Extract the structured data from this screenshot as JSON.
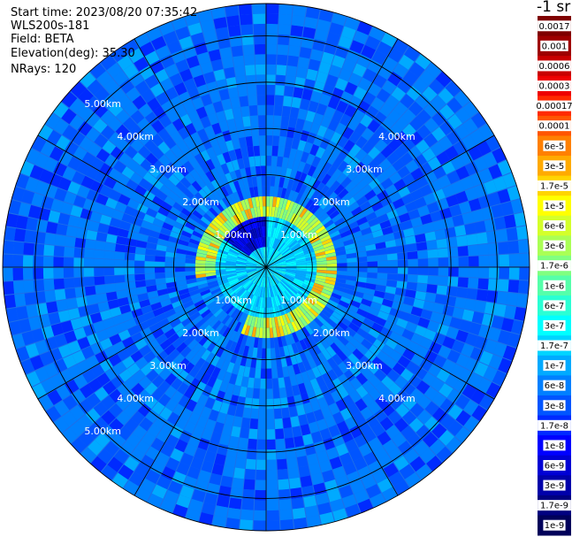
{
  "info": {
    "start_time": "Start time: 2023/08/20 07:35:42",
    "instrument": "WLS200s-181",
    "field": "Field: BETA",
    "elevation": "Elevation(deg): 35.30",
    "nrays": "NRays: 120"
  },
  "chart_data": {
    "type": "heatmap",
    "projection": "polar (PPI scan)",
    "n_rays": 120,
    "range_rings_km": [
      1,
      2,
      3,
      4,
      5
    ],
    "ring_labels": [
      "1.00km",
      "2.00km",
      "3.00km",
      "4.00km",
      "5.00km"
    ],
    "max_range_km": 5.7,
    "colorbar": {
      "unit_label": "-1 sr",
      "tick_labels": [
        "0.0017",
        "0.001",
        "0.0006",
        "0.0003",
        "0.00017",
        "0.0001",
        "6e-5",
        "3e-5",
        "1.7e-5",
        "1e-5",
        "6e-6",
        "3e-6",
        "1.7e-6",
        "1e-6",
        "6e-7",
        "3e-7",
        "1.7e-7",
        "1e-7",
        "6e-8",
        "3e-8",
        "1.7e-8",
        "1e-8",
        "6e-9",
        "3e-9",
        "1.7e-9",
        "1e-9"
      ],
      "colors": [
        "#7f0000",
        "#9e0000",
        "#c80000",
        "#ee0000",
        "#ff2a00",
        "#ff5500",
        "#ff8000",
        "#ffaa00",
        "#ffd400",
        "#ffff00",
        "#d4ff2a",
        "#aaff55",
        "#80ff80",
        "#55ffaa",
        "#2affd4",
        "#00ffff",
        "#00d4ff",
        "#00aaff",
        "#0080ff",
        "#0055ff",
        "#002aff",
        "#0000ff",
        "#0000d4",
        "#0000aa",
        "#000080",
        "#00005a"
      ],
      "scale": "log"
    },
    "typical_values": {
      "background_far_range": "1e-8 to 3e-8",
      "bright_ring_at_about_1.3km": "6e-6 to 6e-5",
      "inner_core": "1e-7 to 3e-7",
      "near_field_patch_north_west": "3e-9 to 1e-8"
    }
  }
}
